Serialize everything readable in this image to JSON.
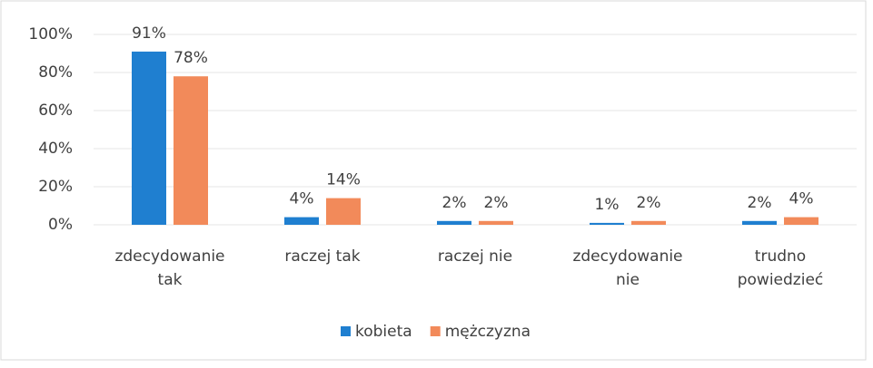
{
  "chart_data": {
    "type": "bar",
    "categories": [
      "zdecydowanie tak",
      "raczej tak",
      "raczej nie",
      "zdecydowanie nie",
      "trudno powiedzieć"
    ],
    "series": [
      {
        "name": "kobieta",
        "color": "#1f7fd0",
        "values": [
          91,
          4,
          2,
          1,
          2
        ],
        "value_labels": [
          "91%",
          "4%",
          "2%",
          "1%",
          "2%"
        ]
      },
      {
        "name": "mężczyzna",
        "color": "#f28a5a",
        "values": [
          78,
          14,
          2,
          2,
          4
        ],
        "value_labels": [
          "78%",
          "14%",
          "2%",
          "2%",
          "4%"
        ]
      }
    ],
    "ylim": [
      0,
      100
    ],
    "yticks": [
      {
        "value": 0,
        "label": "0%"
      },
      {
        "value": 20,
        "label": "20%"
      },
      {
        "value": 40,
        "label": "40%"
      },
      {
        "value": 60,
        "label": "60%"
      },
      {
        "value": 80,
        "label": "80%"
      },
      {
        "value": 100,
        "label": "100%"
      }
    ],
    "grid": true,
    "legend": "bottom"
  }
}
